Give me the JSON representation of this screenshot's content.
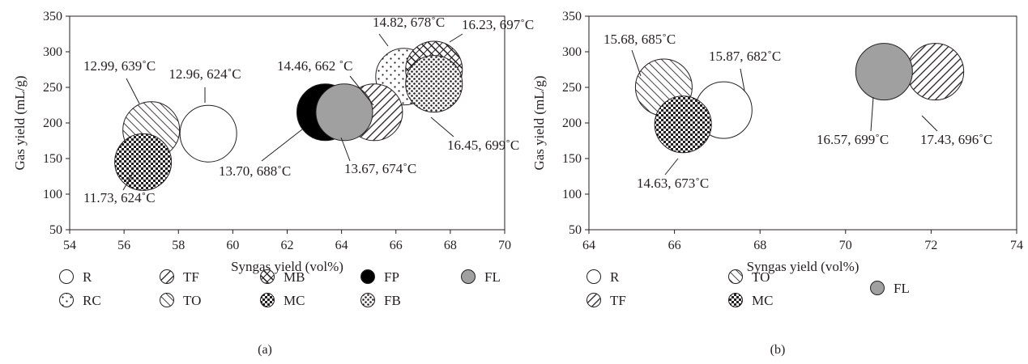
{
  "chart_data": [
    {
      "type": "scatter",
      "panel_label": "(a)",
      "xlabel": "Syngas yield (vol%)",
      "ylabel": "Gas yield (mL/g)",
      "xlim": [
        54,
        70
      ],
      "ylim": [
        50,
        350
      ],
      "xticks": [
        54,
        56,
        58,
        60,
        62,
        64,
        66,
        68,
        70
      ],
      "yticks": [
        50,
        100,
        150,
        200,
        250,
        300,
        350
      ],
      "bubble_size": "uniform",
      "series": [
        {
          "name": "R",
          "pattern": "white",
          "x": 59.1,
          "y": 185,
          "label": "12.96, 624˚C"
        },
        {
          "name": "RC",
          "pattern": "dots",
          "x": 66.3,
          "y": 265,
          "label": "14.82, 678˚C"
        },
        {
          "name": "TF",
          "pattern": "diag-down",
          "x": 65.2,
          "y": 215,
          "label": "14.46, 662 ˚C"
        },
        {
          "name": "TO",
          "pattern": "diag-up",
          "x": 57.0,
          "y": 190,
          "label": "12.99, 639˚C"
        },
        {
          "name": "MB",
          "pattern": "crosshatch",
          "x": 67.4,
          "y": 275,
          "label": "16.23, 697˚C"
        },
        {
          "name": "MC",
          "pattern": "checker",
          "x": 56.7,
          "y": 145,
          "label": "11.73, 624˚C"
        },
        {
          "name": "FP",
          "pattern": "black",
          "x": 63.4,
          "y": 215,
          "label": "13.70, 688˚C"
        },
        {
          "name": "FB",
          "pattern": "stipple",
          "x": 67.4,
          "y": 255,
          "label": "16.45, 699˚C"
        },
        {
          "name": "FL",
          "pattern": "gray",
          "x": 64.1,
          "y": 215,
          "label": "13.67, 674˚C"
        }
      ],
      "draw_order": [
        "R",
        "TO",
        "MC",
        "RC",
        "MB",
        "FB",
        "TF",
        "FP",
        "FL"
      ],
      "legend": {
        "placement": "bottom",
        "rows": [
          [
            "R",
            "TF",
            "MB",
            "FP",
            "FL"
          ],
          [
            "RC",
            "TO",
            "MC",
            "FB"
          ]
        ]
      }
    },
    {
      "type": "scatter",
      "panel_label": "(b)",
      "xlabel": "Syngas yield (vol%)",
      "ylabel": "Gas yield (mL/g)",
      "xlim": [
        64,
        74
      ],
      "ylim": [
        50,
        350
      ],
      "xticks": [
        64,
        66,
        68,
        70,
        72,
        74
      ],
      "yticks": [
        50,
        100,
        150,
        200,
        250,
        300,
        350
      ],
      "bubble_size": "uniform",
      "series": [
        {
          "name": "R",
          "pattern": "white",
          "x": 67.15,
          "y": 218,
          "label": "15.87, 682˚C"
        },
        {
          "name": "TO",
          "pattern": "diag-up",
          "x": 65.75,
          "y": 250,
          "label": "15.68, 685˚C"
        },
        {
          "name": "FL",
          "pattern": "gray",
          "x": 70.9,
          "y": 272,
          "label": "16.57, 699˚C"
        },
        {
          "name": "TF",
          "pattern": "diag-down",
          "x": 72.1,
          "y": 272,
          "label": "17.43, 696˚C"
        },
        {
          "name": "MC",
          "pattern": "checker",
          "x": 66.2,
          "y": 198,
          "label": "14.63, 673˚C"
        }
      ],
      "draw_order": [
        "R",
        "TO",
        "TF",
        "FL",
        "MC"
      ],
      "legend": {
        "placement": "bottom",
        "rows": [
          [
            "R",
            "TO",
            "FL"
          ],
          [
            "TF",
            "MC"
          ]
        ]
      }
    }
  ]
}
